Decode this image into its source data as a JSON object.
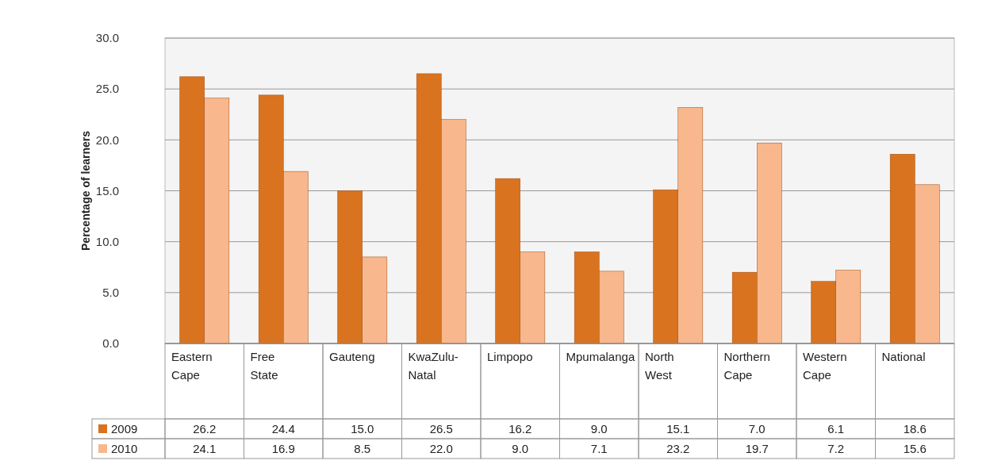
{
  "chart_data": {
    "type": "bar",
    "ylabel": "Percentage of learners",
    "categories": [
      "Eastern Cape",
      "Free State",
      "Gauteng",
      "KwaZulu-Natal",
      "Limpopo",
      "Mpumalanga",
      "North West",
      "Northern Cape",
      "Western Cape",
      "National"
    ],
    "series": [
      {
        "name": "2009",
        "color": "#d9731f",
        "values": [
          26.2,
          24.4,
          15.0,
          26.5,
          16.2,
          9.0,
          15.1,
          7.0,
          6.1,
          18.6
        ],
        "value_labels": [
          "26.2",
          "24.4",
          "15.0",
          "26.5",
          "16.2",
          "9.0",
          "15.1",
          "7.0",
          "6.1",
          "18.6"
        ]
      },
      {
        "name": "2010",
        "color": "#f8b78c",
        "values": [
          24.1,
          16.9,
          8.5,
          22.0,
          9.0,
          7.1,
          23.2,
          19.7,
          7.2,
          15.6
        ],
        "value_labels": [
          "24.1",
          "16.9",
          "8.5",
          "22.0",
          "9.0",
          "7.1",
          "23.2",
          "19.7",
          "7.2",
          "15.6"
        ]
      }
    ],
    "ylim": [
      0,
      30
    ],
    "yticks": [
      {
        "value": 0,
        "label": "0.0"
      },
      {
        "value": 5,
        "label": "5.0"
      },
      {
        "value": 10,
        "label": "10.0"
      },
      {
        "value": 15,
        "label": "15.0"
      },
      {
        "value": 20,
        "label": "20.0"
      },
      {
        "value": 25,
        "label": "25.0"
      },
      {
        "value": 30,
        "label": "30.0"
      }
    ],
    "grid": "y",
    "legend": "bottom"
  }
}
